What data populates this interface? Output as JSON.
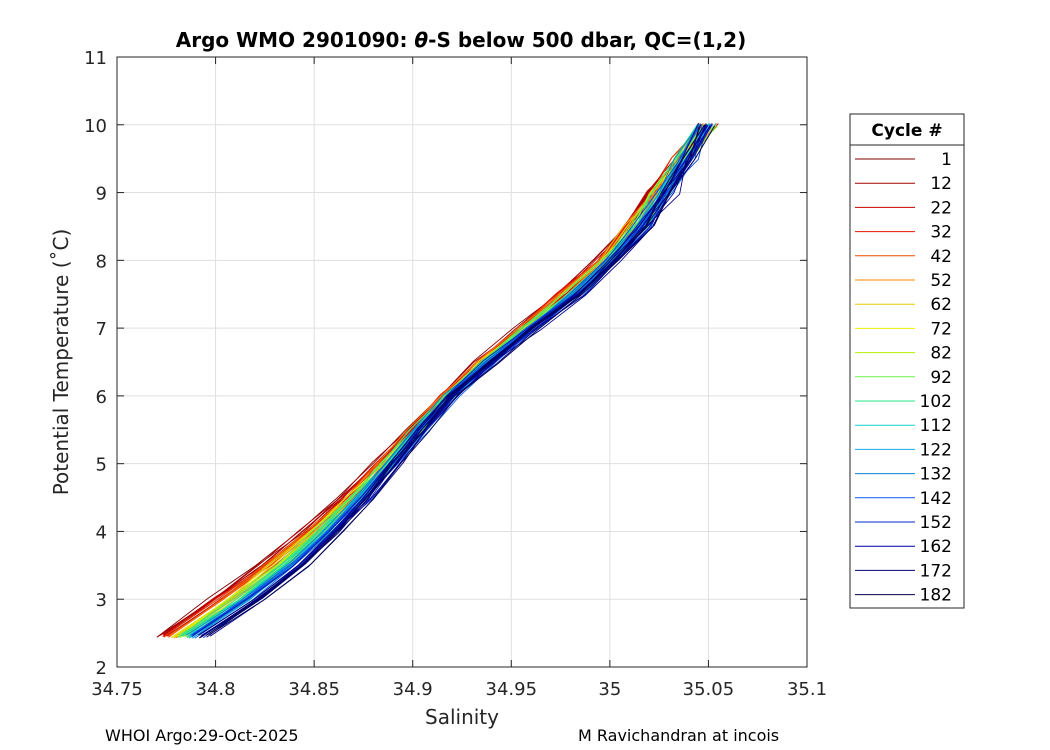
{
  "chart_data": {
    "type": "line",
    "title_prefix": "Argo WMO 2901090: ",
    "title_theta": "θ",
    "title_suffix": "-S below 500 dbar,  QC=(1,2)",
    "xlabel": "Salinity",
    "ylabel": "Potential Temperature (˚C)",
    "xlim": [
      34.75,
      35.1
    ],
    "ylim": [
      2,
      11
    ],
    "xticks": [
      34.75,
      34.8,
      34.85,
      34.9,
      34.95,
      35,
      35.05,
      35.1
    ],
    "xtick_labels": [
      "34.75",
      "34.8",
      "34.85",
      "34.9",
      "34.95",
      "35",
      "35.05",
      "35.1"
    ],
    "yticks": [
      2,
      3,
      4,
      5,
      6,
      7,
      8,
      9,
      10,
      11
    ],
    "ytick_labels": [
      "2",
      "3",
      "4",
      "5",
      "6",
      "7",
      "8",
      "9",
      "10",
      "11"
    ],
    "grid": true,
    "legend_title": "Cycle #",
    "legend_position": "outside-right",
    "series": [
      {
        "name": "1",
        "color": "#800000"
      },
      {
        "name": "12",
        "color": "#a30000"
      },
      {
        "name": "22",
        "color": "#c80000"
      },
      {
        "name": "32",
        "color": "#e61400"
      },
      {
        "name": "42",
        "color": "#f04a00"
      },
      {
        "name": "52",
        "color": "#f58a00"
      },
      {
        "name": "62",
        "color": "#e6c800"
      },
      {
        "name": "72",
        "color": "#f0f000"
      },
      {
        "name": "82",
        "color": "#b4f000"
      },
      {
        "name": "92",
        "color": "#6ef046"
      },
      {
        "name": "102",
        "color": "#28e68c"
      },
      {
        "name": "112",
        "color": "#14d2c8"
      },
      {
        "name": "122",
        "color": "#14aaf0"
      },
      {
        "name": "132",
        "color": "#0a82d2"
      },
      {
        "name": "142",
        "color": "#0a5af0"
      },
      {
        "name": "152",
        "color": "#0a28c8"
      },
      {
        "name": "162",
        "color": "#0000a0"
      },
      {
        "name": "172",
        "color": "#00007a"
      },
      {
        "name": "182",
        "color": "#000050"
      }
    ],
    "profile_envelope": {
      "theta": [
        2.45,
        3,
        3.5,
        4,
        4.5,
        5,
        5.5,
        6,
        6.5,
        7,
        7.5,
        8,
        8.5,
        9,
        9.5,
        10
      ],
      "salinity_first_cycle": [
        34.772,
        34.8,
        34.823,
        34.845,
        34.865,
        34.883,
        34.9,
        34.917,
        34.935,
        34.955,
        34.975,
        34.995,
        35.01,
        35.022,
        35.035,
        35.05
      ],
      "salinity_last_cycle": [
        34.795,
        34.823,
        34.845,
        34.862,
        34.878,
        34.892,
        34.905,
        34.92,
        34.94,
        34.962,
        34.985,
        35.003,
        35.018,
        35.03,
        35.04,
        35.048
      ]
    }
  },
  "footer": {
    "left": "WHOI Argo:29-Oct-2025",
    "right": "M Ravichandran at incois"
  }
}
